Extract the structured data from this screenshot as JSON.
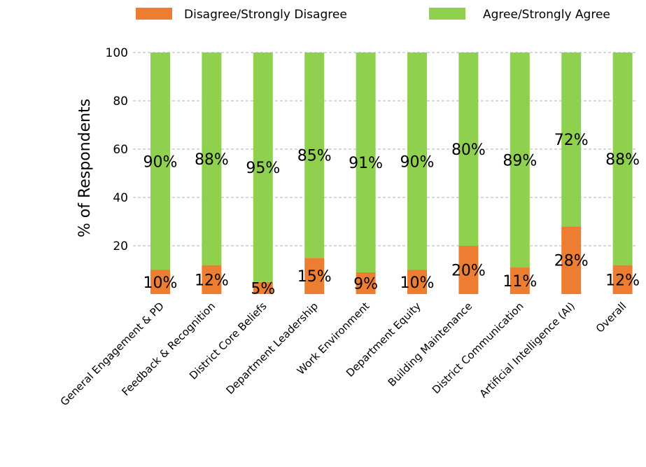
{
  "chart_data": {
    "type": "bar",
    "stacked": true,
    "categories": [
      "General Engagement & PD",
      "Feedback & Recognition",
      "District Core Beliefs",
      "Department Leadership",
      "Work Environment",
      "Department Equity",
      "Building Maintenance",
      "District Communication",
      "Artificial Intelligence (AI)",
      "Overall"
    ],
    "series": [
      {
        "name": "Disagree/Strongly Disagree",
        "color": "#ed7d31",
        "values": [
          10,
          12,
          5,
          15,
          9,
          10,
          20,
          11,
          28,
          12
        ],
        "labels": [
          "10%",
          "12%",
          "5%",
          "15%",
          "9%",
          "10%",
          "20%",
          "11%",
          "28%",
          "12%"
        ]
      },
      {
        "name": "Agree/Strongly Agree",
        "color": "#8fd14f",
        "values": [
          90,
          88,
          95,
          85,
          91,
          90,
          80,
          89,
          72,
          88
        ],
        "labels": [
          "90%",
          "88%",
          "95%",
          "85%",
          "91%",
          "90%",
          "80%",
          "89%",
          "72%",
          "88%"
        ]
      }
    ],
    "xlabel": "",
    "ylabel": "% of Respondents",
    "ylim": [
      0,
      100
    ],
    "yticks": [
      20,
      40,
      60,
      80,
      100
    ],
    "grid": "horizontal dashed",
    "legend": "top"
  }
}
